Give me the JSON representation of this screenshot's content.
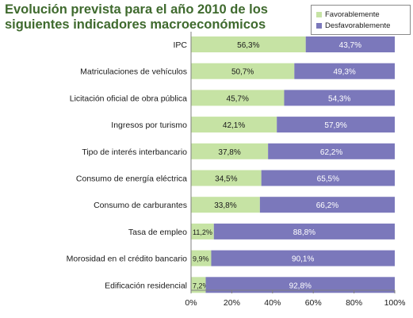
{
  "chart_data": {
    "type": "bar",
    "stacked": true,
    "orientation": "horizontal",
    "title": "Evolución prevista para el año 2010 de los siguientes indicadores macroeconómicos",
    "categories": [
      "IPC",
      "Matriculaciones de vehículos",
      "Licitación oficial de obra pública",
      "Ingresos por turismo",
      "Tipo de interés interbancario",
      "Consumo de energía eléctrica",
      "Consumo de carburantes",
      "Tasa de empleo",
      "Morosidad en el crédito bancario",
      "Edificación residencial"
    ],
    "series": [
      {
        "name": "Favorablemente",
        "color": "#c6e3a4",
        "values": [
          56.3,
          50.7,
          45.7,
          42.1,
          37.8,
          34.5,
          33.8,
          11.2,
          9.9,
          7.2
        ],
        "labels": [
          "56,3%",
          "50,7%",
          "45,7%",
          "42,1%",
          "37,8%",
          "34,5%",
          "33,8%",
          "11,2%",
          "9,9%",
          "7,2%"
        ]
      },
      {
        "name": "Desfavorablemente",
        "color": "#7b78bb",
        "values": [
          43.7,
          49.3,
          54.3,
          57.9,
          62.2,
          65.5,
          66.2,
          88.8,
          90.1,
          92.8
        ],
        "labels": [
          "43,7%",
          "49,3%",
          "54,3%",
          "57,9%",
          "62,2%",
          "65,5%",
          "66,2%",
          "88,8%",
          "90,1%",
          "92,8%"
        ]
      }
    ],
    "xlim": [
      0,
      100
    ],
    "xticks": [
      "0%",
      "20%",
      "40%",
      "60%",
      "80%",
      "100%"
    ],
    "grid": false,
    "legend": "top-right"
  }
}
